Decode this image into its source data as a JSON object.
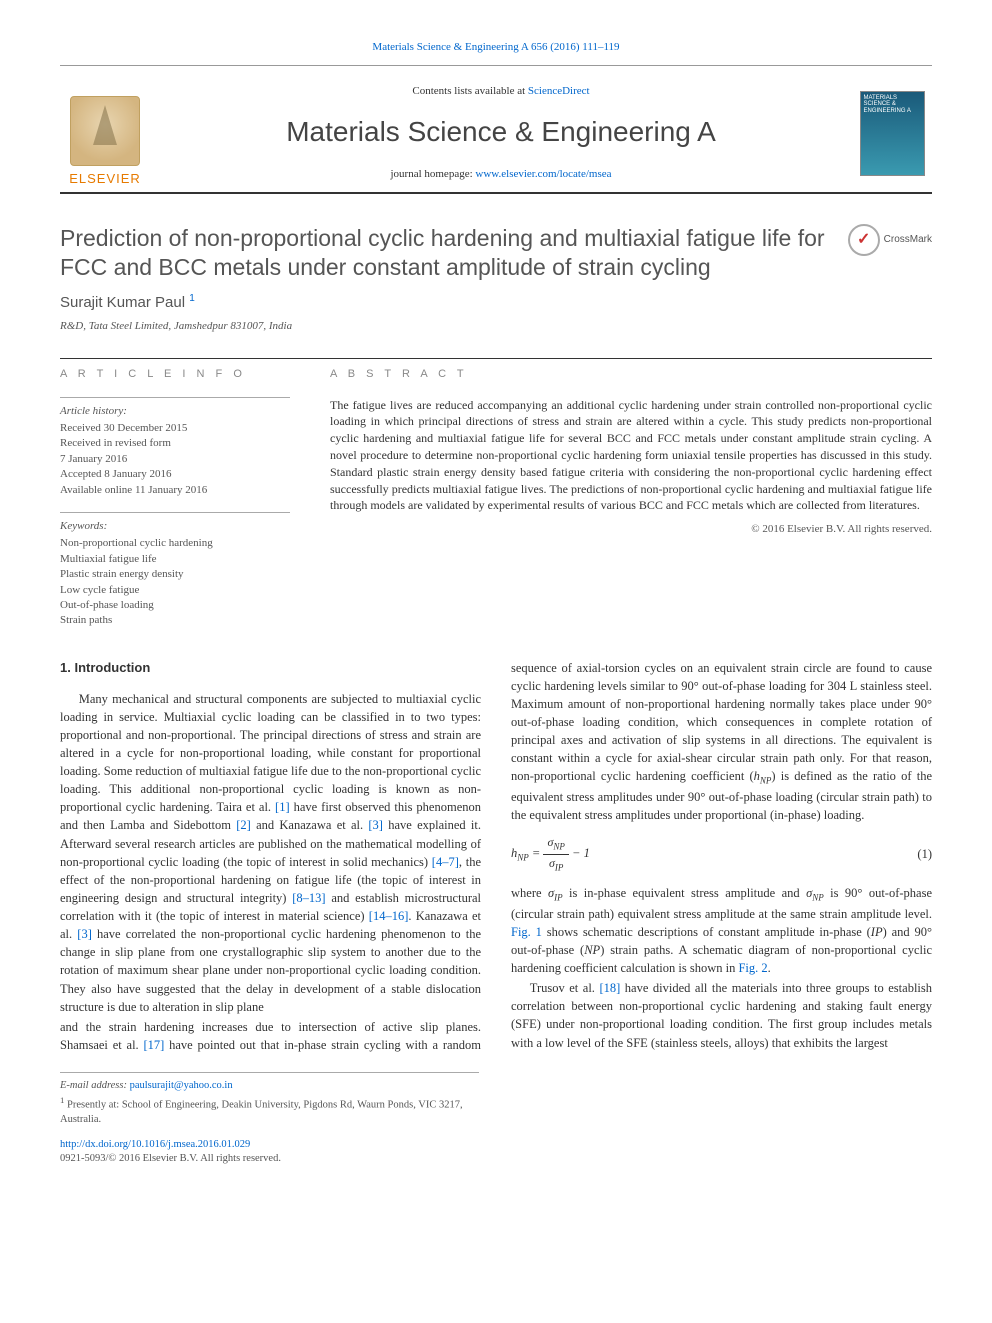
{
  "top_line": {
    "pre": "Materials Science & Engineering A 656 (2016) 111–119"
  },
  "header": {
    "contents_pre": "Contents lists available at ",
    "contents_link": "ScienceDirect",
    "journal": "Materials Science & Engineering A",
    "homepage_pre": "journal homepage: ",
    "homepage_link": "www.elsevier.com/locate/msea",
    "elsevier": "ELSEVIER",
    "cover_text": "MATERIALS SCIENCE & ENGINEERING A"
  },
  "title": "Prediction of non-proportional cyclic hardening and multiaxial fatigue life for FCC and BCC metals under constant amplitude of strain cycling",
  "crossmark": "CrossMark",
  "author": {
    "name": "Surajit Kumar Paul",
    "note": "1"
  },
  "affiliation": "R&D, Tata Steel Limited, Jamshedpur 831007, India",
  "labels": {
    "info": "A R T I C L E  I N F O",
    "abstract": "A B S T R A C T"
  },
  "history": {
    "heading": "Article history:",
    "lines": [
      "Received 30 December 2015",
      "Received in revised form",
      "7 January 2016",
      "Accepted 8 January 2016",
      "Available online 11 January 2016"
    ]
  },
  "keywords": {
    "heading": "Keywords:",
    "items": [
      "Non-proportional cyclic hardening",
      "Multiaxial fatigue life",
      "Plastic strain energy density",
      "Low cycle fatigue",
      "Out-of-phase loading",
      "Strain paths"
    ]
  },
  "abstract": "The fatigue lives are reduced accompanying an additional cyclic hardening under strain controlled non-proportional cyclic loading in which principal directions of stress and strain are altered within a cycle. This study predicts non-proportional cyclic hardening and multiaxial fatigue life for several BCC and FCC metals under constant amplitude strain cycling. A novel procedure to determine non-proportional cyclic hardening form uniaxial tensile properties has discussed in this study. Standard plastic strain energy density based fatigue criteria with considering the non-proportional cyclic hardening effect successfully predicts multiaxial fatigue lives. The predictions of non-proportional cyclic hardening and multiaxial fatigue life through models are validated by experimental results of various BCC and FCC metals which are collected from literatures.",
  "abs_copyright": "© 2016 Elsevier B.V. All rights reserved.",
  "intro_heading": "1. Introduction",
  "p1a": "Many mechanical and structural components are subjected to multiaxial cyclic loading in service. Multiaxial cyclic loading can be classified in to two types: proportional and non-proportional. The principal directions of stress and strain are altered in a cycle for non-proportional loading, while constant for proportional loading. Some reduction of multiaxial fatigue life due to the non-proportional cyclic loading. This additional non-proportional cyclic loading is known as non-proportional cyclic hardening. Taira et al. ",
  "r1": "[1]",
  "p1b": " have first observed this phenomenon and then Lamba and Sidebottom ",
  "r2": "[2]",
  "p1c": " and Kanazawa et al. ",
  "r3": "[3]",
  "p1d": " have explained it. Afterward several research articles are published on the mathematical modelling of non-proportional cyclic loading (the topic of interest in solid mechanics) ",
  "r47": "[4–7]",
  "p1e": ", the effect of the non-proportional hardening on fatigue life (the topic of interest in engineering design and structural integrity) ",
  "r813": "[8–13]",
  "p1f": " and establish microstructural correlation with it (the topic of interest in material science) ",
  "r1416": "[14–16]",
  "p1g": ". Kanazawa et al. ",
  "r3b": "[3]",
  "p1h": " have correlated the non-proportional cyclic hardening phenomenon to the change in slip plane from one crystallographic slip system to another due to the rotation of maximum shear plane under non-proportional cyclic loading condition. They also have suggested that the delay in development of a stable dislocation structure is due to alteration in slip plane",
  "p2a": "and the strain hardening increases due to intersection of active slip planes. Shamsaei et al. ",
  "r17": "[17]",
  "p2b": " have pointed out that in-phase strain cycling with a random sequence of axial-torsion cycles on an equivalent strain circle are found to cause cyclic hardening levels similar to 90° out-of-phase loading for 304 L stainless steel. Maximum amount of non-proportional hardening normally takes place under 90° out-of-phase loading condition, which consequences in complete rotation of principal axes and activation of slip systems in all directions. The equivalent is constant within a cycle for axial-shear circular strain path only. For that reason, non-proportional cyclic hardening coefficient (",
  "hnp": "h",
  "hnp_sub": "NP",
  "p2c": ") is defined as the ratio of the equivalent stress amplitudes under 90° out-of-phase loading (circular strain path) to the equivalent stress amplitudes under proportional (in-phase) loading.",
  "eq1": {
    "lhs_h": "h",
    "lhs_sub": "NP",
    "num_sym": "σ",
    "num_sub": "NP",
    "den_sym": "σ",
    "den_sub": "IP",
    "tail": " − 1",
    "num": "(1)"
  },
  "p3a": "where ",
  "sig": "σ",
  "ip_sub": "IP",
  "p3b": " is in-phase equivalent stress amplitude and ",
  "np_sub": "NP",
  "p3c": " is 90° out-of-phase (circular strain path) equivalent stress amplitude at the same strain amplitude level. ",
  "fig1": "Fig. 1",
  "p3d": " shows schematic descriptions of constant amplitude in-phase (",
  "ip_i": "IP",
  "p3e": ") and 90° out-of-phase (",
  "np_i": "NP",
  "p3f": ") strain paths. A schematic diagram of non-proportional cyclic hardening coefficient calculation is shown in ",
  "fig2": "Fig. 2",
  "p3g": ".",
  "p4a": "Trusov et al. ",
  "r18": "[18]",
  "p4b": " have divided all the materials into three groups to establish correlation between non-proportional cyclic hardening and staking fault energy (SFE) under non-proportional loading condition. The first group includes metals with a low level of the SFE (stainless steels, alloys) that exhibits the largest",
  "foot": {
    "email_lbl": "E-mail address: ",
    "email": "paulsurajit@yahoo.co.in",
    "note1": "Presently at: School of Engineering, Deakin University, Pigdons Rd, Waurn Ponds, VIC 3217, Australia.",
    "doi": "http://dx.doi.org/10.1016/j.msea.2016.01.029",
    "issn": "0921-5093/© 2016 Elsevier B.V. All rights reserved."
  },
  "style": {
    "link_color": "#0066cc",
    "text_color": "#333333",
    "muted": "#555555",
    "elsevier_orange": "#e67a00",
    "body_font_size": 12.5,
    "title_font_size": 23
  }
}
